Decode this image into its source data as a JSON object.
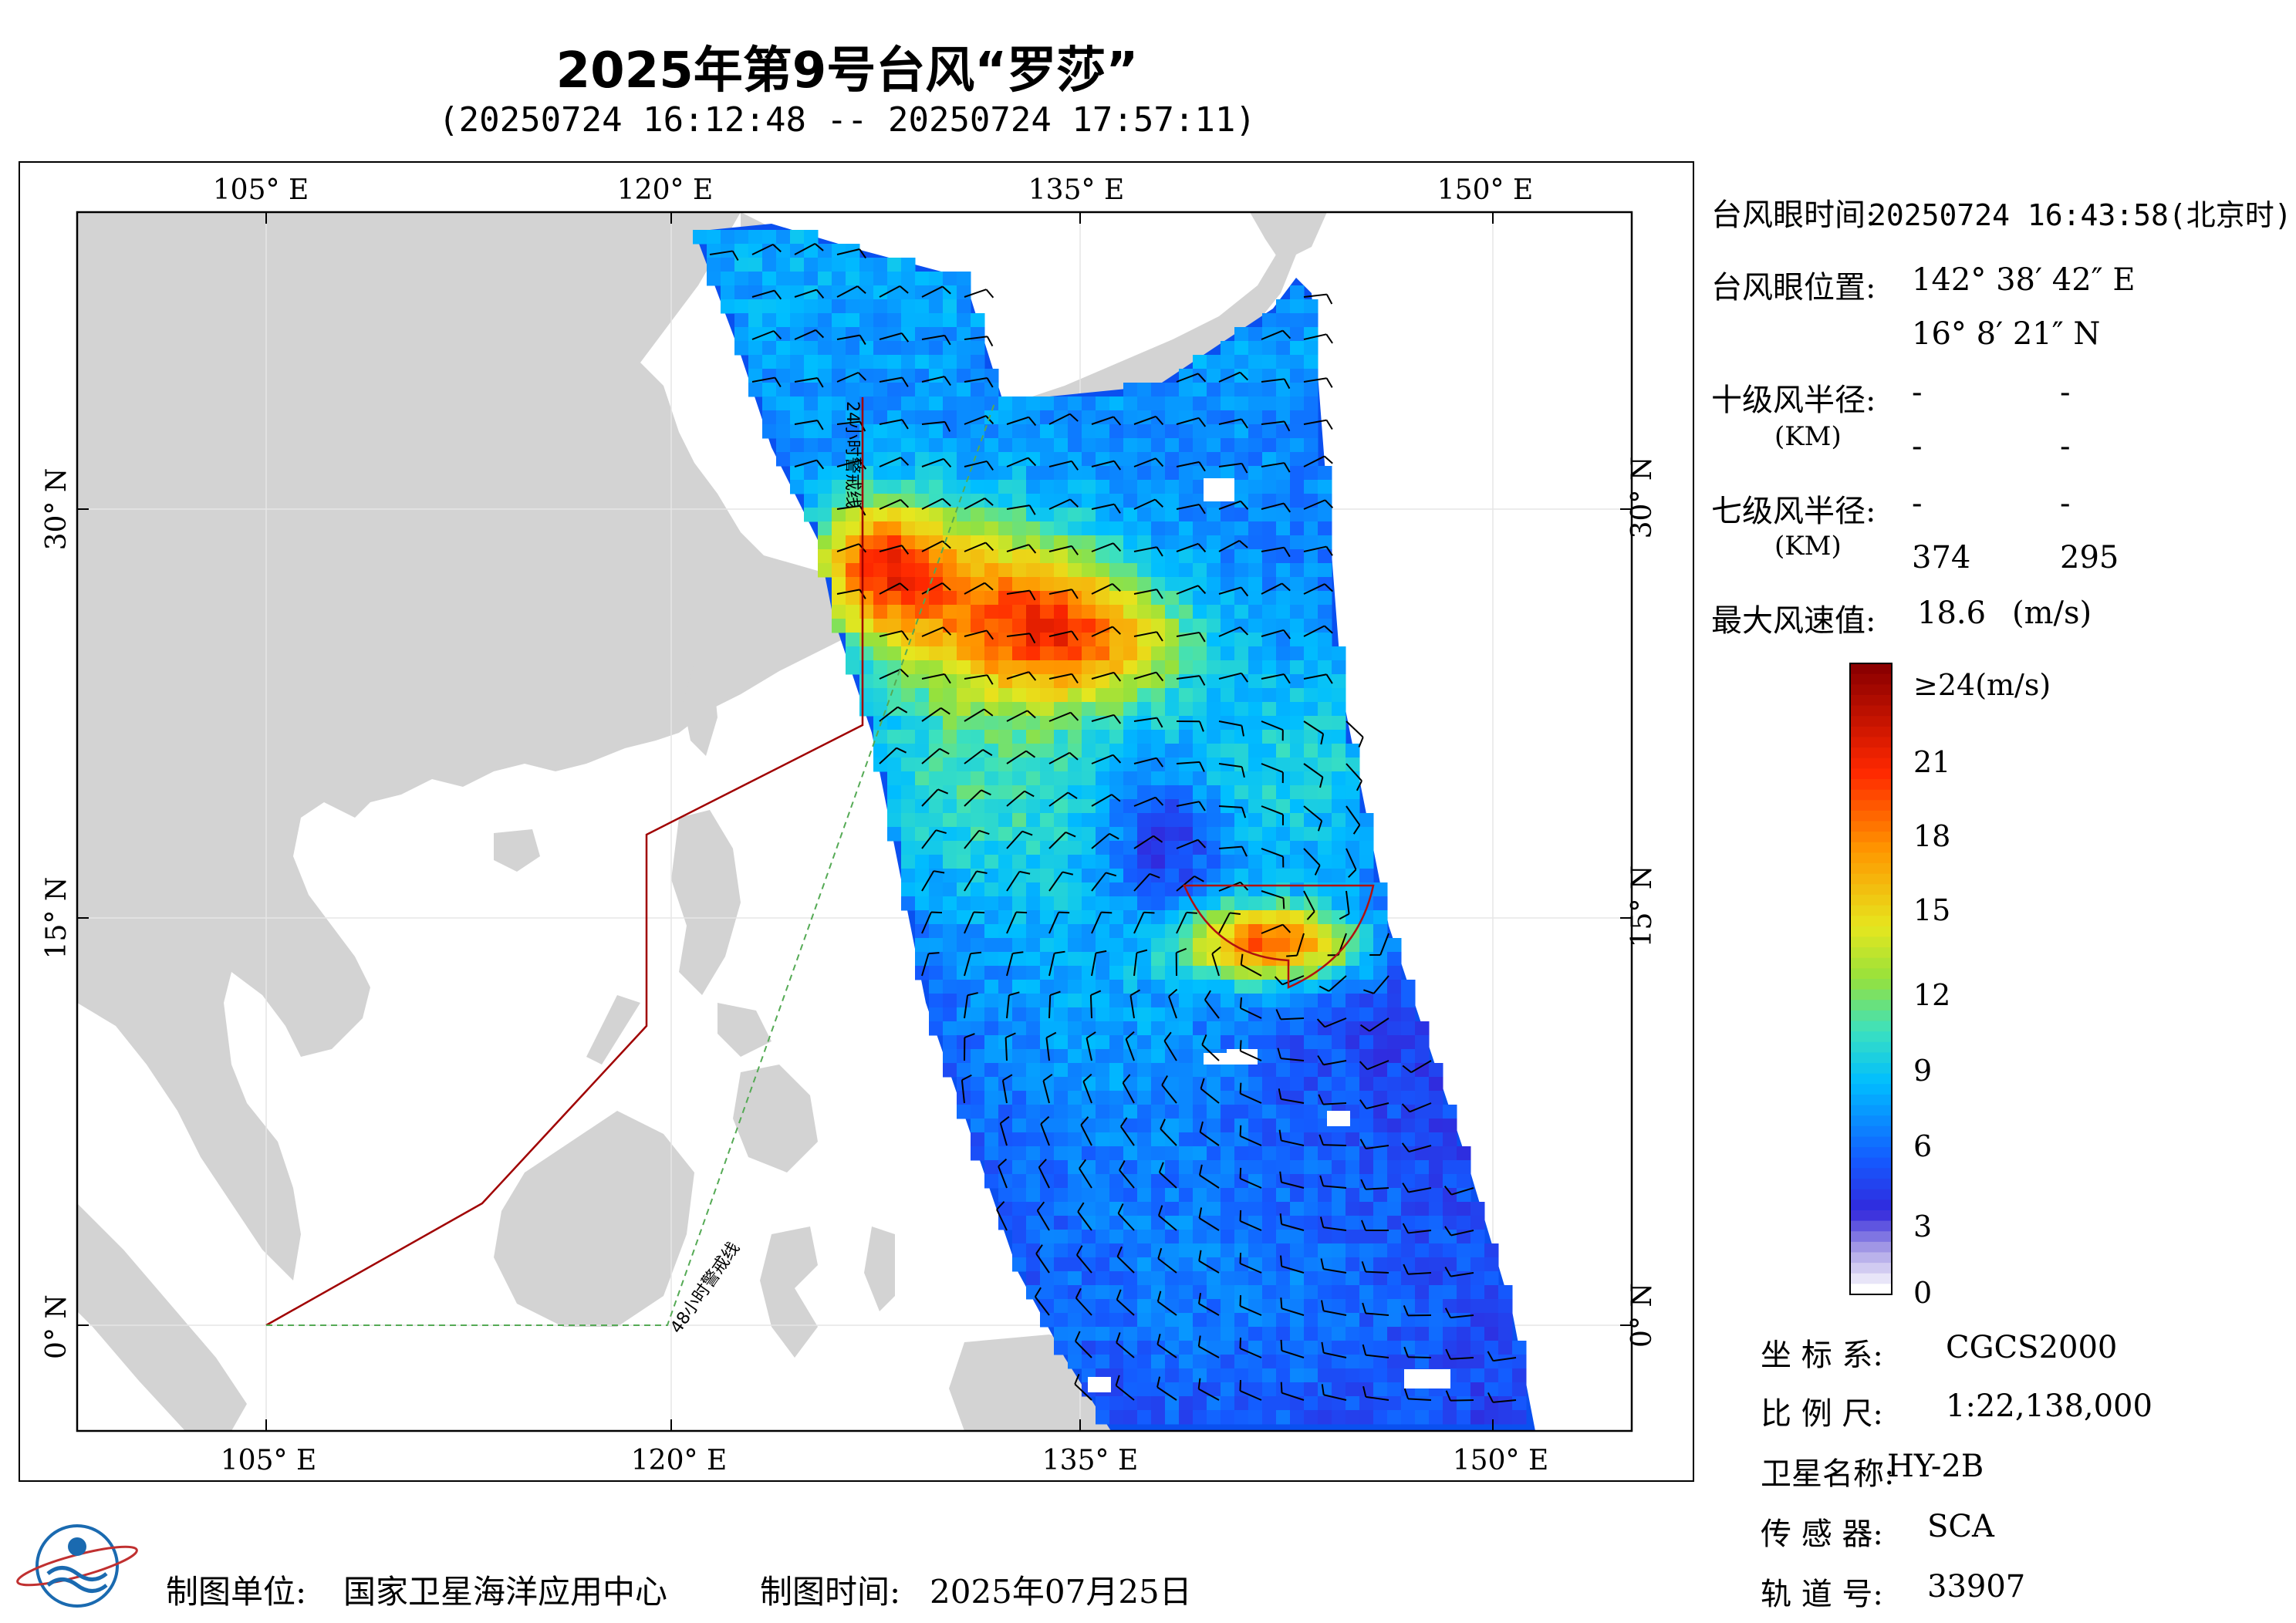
{
  "title": "2025年第9号台风“罗莎”",
  "subtitle": "(20250724 16:12:48 -- 20250724 17:57:11)",
  "map": {
    "lon_labels": [
      "105° E",
      "120° E",
      "135° E",
      "150° E"
    ],
    "lat_labels": [
      "30° N",
      "15° N",
      "0° N"
    ],
    "warning_24h": "24小时警戒线",
    "warning_48h": "48小时警戒线",
    "colors": {
      "land": "#d3d3d3",
      "sea": "#ffffff",
      "warning_24h": "#a00000",
      "warning_48h": "#44aa44",
      "radius": "#b01010"
    }
  },
  "info": {
    "eye_time_label": "台风眼时间:",
    "eye_time_value": "20250724 16:43:58(北京时)",
    "eye_pos_label": "台风眼位置:",
    "eye_lon": "142° 38′ 42″ E",
    "eye_lat": "16° 8′ 21″ N",
    "r10_label": "十级风半径:",
    "r10_unit": "(KM)",
    "r10_values": [
      "-",
      "-",
      "-",
      "-"
    ],
    "r7_label": "七级风半径:",
    "r7_unit": "(KM)",
    "r7_values": [
      "-",
      "-",
      "374",
      "295"
    ],
    "vmax_label": "最大风速值:",
    "vmax_value": "18.6",
    "vmax_unit": "(m/s)"
  },
  "legend": {
    "labels": [
      "≥24(m/s)",
      "21",
      "18",
      "15",
      "12",
      "9",
      "6",
      "3",
      "0"
    ],
    "colors": [
      "#ffffff",
      "#b0a8e8",
      "#4040e0",
      "#1060ff",
      "#00c0ff",
      "#40e0c0",
      "#a0e040",
      "#f0e020",
      "#ff9000",
      "#ff2000",
      "#900000"
    ]
  },
  "footer": {
    "unit_label": "制图单位:",
    "unit_value": "国家卫星海洋应用中心",
    "time_label": "制图时间:",
    "time_value": "2025年07月25日"
  },
  "meta": {
    "coord_label": "坐 标 系:",
    "coord_value": "CGCS2000",
    "scale_label": "比 例 尺:",
    "scale_value": "1:22,138,000",
    "sat_label": "卫星名称:",
    "sat_value": "HY-2B",
    "sensor_label": "传 感 器:",
    "sensor_value": "SCA",
    "orbit_label": "轨 道 号:",
    "orbit_value": "33907"
  }
}
